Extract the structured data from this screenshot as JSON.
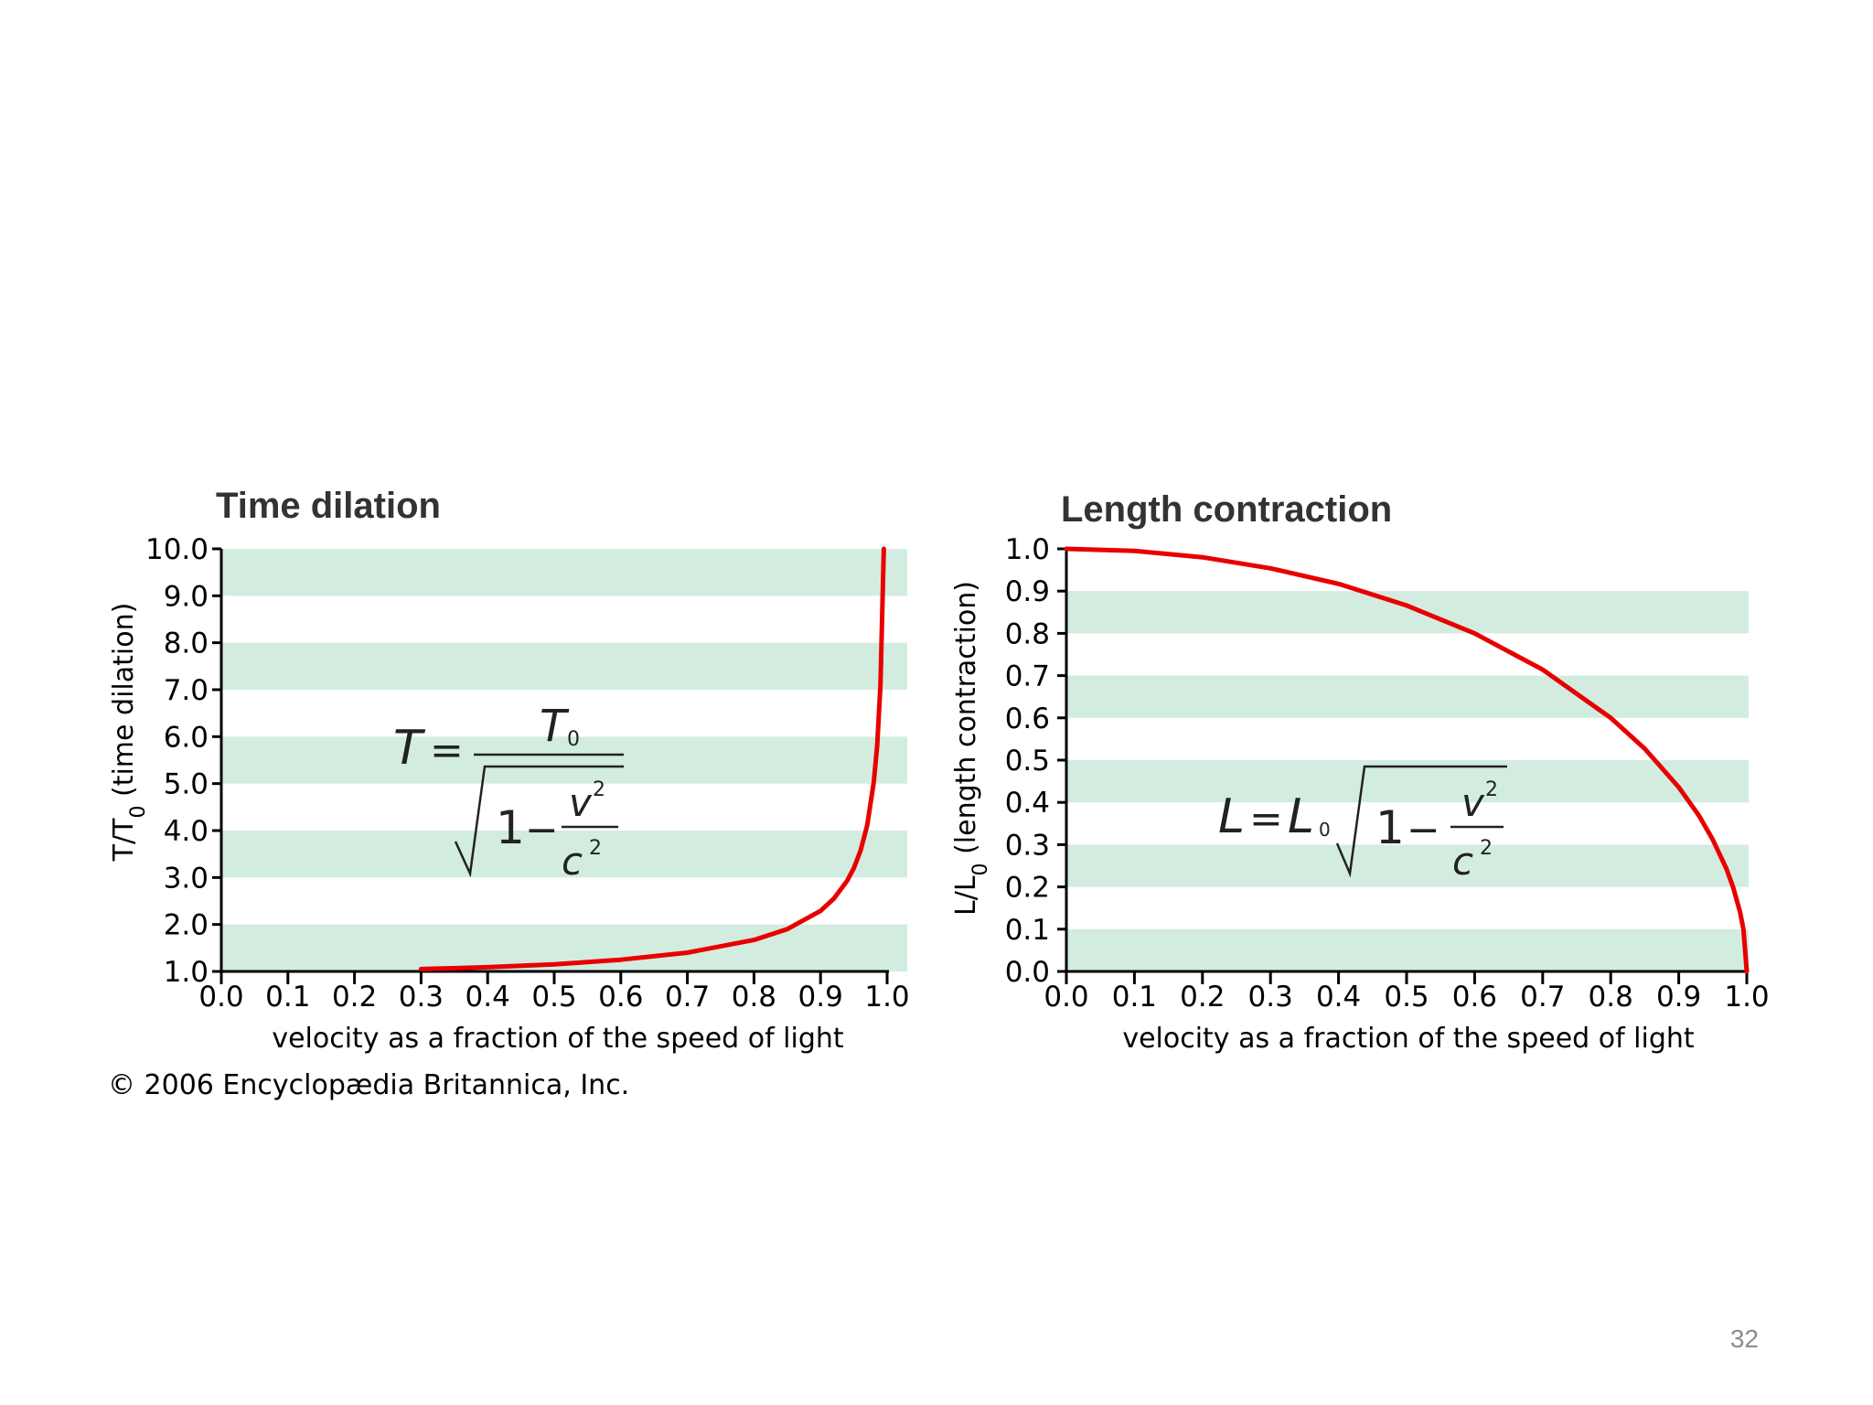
{
  "slide": {
    "page_number": "32",
    "copyright": "© 2006 Encyclopædia Britannica, Inc."
  },
  "colors": {
    "band": "#d3ece0",
    "curve": "#e80000",
    "axis": "#000000"
  },
  "chart_data": [
    {
      "type": "line",
      "title": "Time dilation",
      "xlabel": "velocity as a fraction of the speed of light",
      "ylabel_prefix": "T/T",
      "ylabel_sub": "0",
      "ylabel_suffix": " (time dilation)",
      "xlim": [
        0.0,
        1.0
      ],
      "ylim": [
        1.0,
        10.0
      ],
      "x_ticks": [
        "0.0",
        "0.1",
        "0.2",
        "0.3",
        "0.4",
        "0.5",
        "0.6",
        "0.7",
        "0.8",
        "0.9",
        "1.0"
      ],
      "y_ticks": [
        "1.0",
        "2.0",
        "3.0",
        "4.0",
        "5.0",
        "6.0",
        "7.0",
        "8.0",
        "9.0",
        "10.0"
      ],
      "bands": [
        [
          1.0,
          2.0
        ],
        [
          3.0,
          4.0
        ],
        [
          5.0,
          6.0
        ],
        [
          7.0,
          8.0
        ],
        [
          9.0,
          10.0
        ]
      ],
      "series": [
        {
          "x": [
            0.3,
            0.4,
            0.5,
            0.6,
            0.7,
            0.8,
            0.85,
            0.9,
            0.92,
            0.94,
            0.95,
            0.96,
            0.97,
            0.98,
            0.985,
            0.99,
            0.995
          ],
          "y": [
            1.05,
            1.09,
            1.15,
            1.25,
            1.4,
            1.67,
            1.9,
            2.29,
            2.55,
            2.93,
            3.2,
            3.57,
            4.11,
            5.03,
            5.8,
            7.09,
            10.0
          ]
        }
      ],
      "formula": {
        "lhs": "T",
        "eq": "=",
        "numerator": "T",
        "numerator_sub": "0",
        "one": "1",
        "minus": "−",
        "v": "v",
        "v_exp": "2",
        "c": "c",
        "c_exp": "2"
      }
    },
    {
      "type": "line",
      "title": "Length contraction",
      "xlabel": "velocity as a fraction of the speed of light",
      "ylabel_prefix": "L/L",
      "ylabel_sub": "0",
      "ylabel_suffix": " (length contraction)",
      "xlim": [
        0.0,
        1.0
      ],
      "ylim": [
        0.0,
        1.0
      ],
      "x_ticks": [
        "0.0",
        "0.1",
        "0.2",
        "0.3",
        "0.4",
        "0.5",
        "0.6",
        "0.7",
        "0.8",
        "0.9",
        "1.0"
      ],
      "y_ticks": [
        "0.0",
        "0.1",
        "0.2",
        "0.3",
        "0.4",
        "0.5",
        "0.6",
        "0.7",
        "0.8",
        "0.9",
        "1.0"
      ],
      "bands": [
        [
          0.0,
          0.1
        ],
        [
          0.2,
          0.3
        ],
        [
          0.4,
          0.5
        ],
        [
          0.6,
          0.7
        ],
        [
          0.8,
          0.9
        ]
      ],
      "series": [
        {
          "x": [
            0.0,
            0.1,
            0.2,
            0.3,
            0.4,
            0.5,
            0.6,
            0.7,
            0.8,
            0.85,
            0.9,
            0.93,
            0.95,
            0.97,
            0.98,
            0.99,
            0.995,
            1.0
          ],
          "y": [
            1.0,
            0.995,
            0.98,
            0.954,
            0.917,
            0.866,
            0.8,
            0.714,
            0.6,
            0.527,
            0.436,
            0.368,
            0.312,
            0.243,
            0.199,
            0.141,
            0.1,
            0.0
          ]
        }
      ],
      "formula": {
        "lhs": "L",
        "eq": "=",
        "factor": "L",
        "factor_sub": "0",
        "one": "1",
        "minus": "−",
        "v": "v",
        "v_exp": "2",
        "c": "c",
        "c_exp": "2"
      }
    }
  ]
}
